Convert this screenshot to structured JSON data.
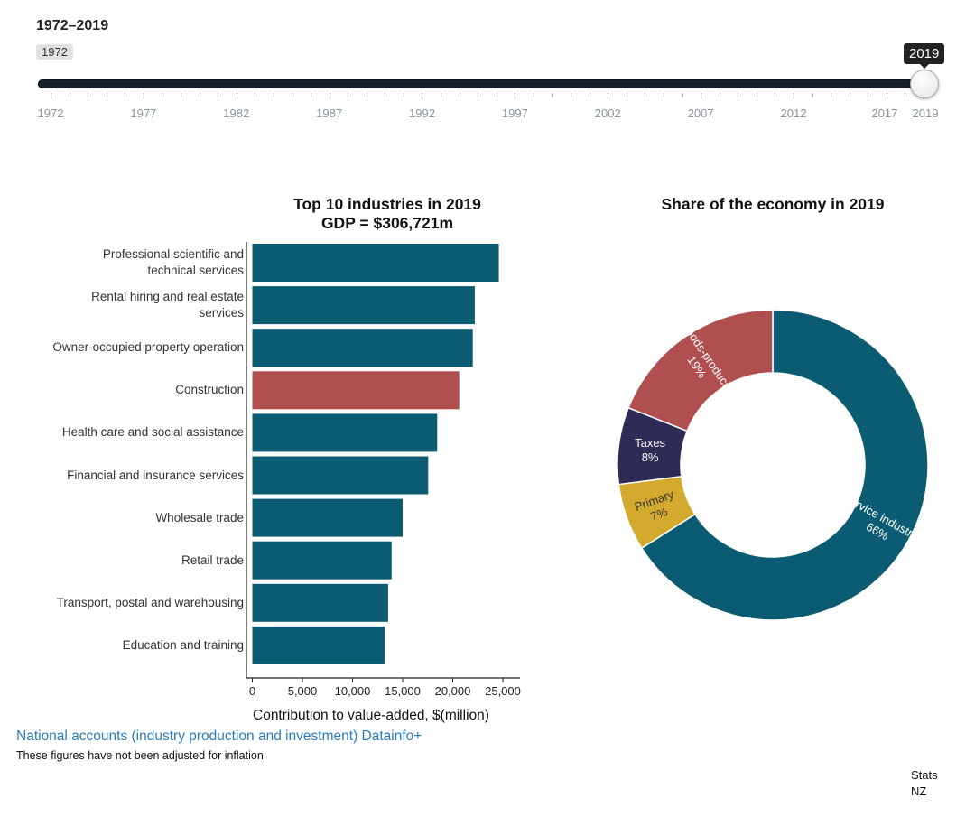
{
  "slider": {
    "range_title": "1972–2019",
    "start_value": "1972",
    "end_value": "2019",
    "min": 1972,
    "max": 2019,
    "selected_end": 2019,
    "tick_labels": [
      "1972",
      "1977",
      "1982",
      "1987",
      "1992",
      "1997",
      "2002",
      "2007",
      "2012",
      "2017",
      "2019"
    ]
  },
  "bar_chart": {
    "title_line1": "Top 10 industries in 2019",
    "title_line2": "GDP = $306,721m",
    "xlabel": "Contribution to value-added, $(million)"
  },
  "donut_chart": {
    "title": "Share of the economy in 2019"
  },
  "colors": {
    "service": "#0b5c72",
    "goods": "#b04f4f",
    "taxes": "#2e2c57",
    "primary": "#d4aa2e"
  },
  "chart_data": [
    {
      "type": "bar",
      "orientation": "horizontal",
      "title": "Top 10 industries in 2019 GDP = $306,721m",
      "xlabel": "Contribution to value-added, $(million)",
      "ylabel": "",
      "xlim": [
        0,
        27000
      ],
      "xticks": [
        0,
        5000,
        10000,
        15000,
        20000,
        25000
      ],
      "xtick_labels": [
        "0",
        "5,000",
        "10,000",
        "15,000",
        "20,000",
        "25,000"
      ],
      "categories": [
        [
          "Professional scientific and",
          "technical services"
        ],
        [
          "Rental hiring and real estate",
          "services"
        ],
        [
          "Owner-occupied property operation"
        ],
        [
          "Construction"
        ],
        [
          "Health care and social assistance"
        ],
        [
          "Financial and insurance services"
        ],
        [
          "Wholesale trade"
        ],
        [
          "Retail trade"
        ],
        [
          "Transport, postal and warehousing"
        ],
        [
          "Education and training"
        ]
      ],
      "values": [
        24600,
        22200,
        22000,
        20650,
        18450,
        17550,
        15000,
        13900,
        13550,
        13200
      ],
      "bar_colors": [
        "#0b5c72",
        "#0b5c72",
        "#0b5c72",
        "#b04f4f",
        "#0b5c72",
        "#0b5c72",
        "#0b5c72",
        "#0b5c72",
        "#0b5c72",
        "#0b5c72"
      ],
      "grid": false
    },
    {
      "type": "pie",
      "style": "donut",
      "title": "Share of the economy in 2019",
      "slices": [
        {
          "name": "Service industries",
          "label": "66%",
          "value": 66,
          "color": "#0b5c72"
        },
        {
          "name": "Primary",
          "label": "7%",
          "value": 7,
          "color": "#d4aa2e"
        },
        {
          "name": "Taxes",
          "label": "8%",
          "value": 8,
          "color": "#2e2c57"
        },
        {
          "name": "Goods-producing",
          "label": "19%",
          "value": 19,
          "color": "#b04f4f"
        }
      ]
    }
  ],
  "footer": {
    "source_link": "National accounts (industry production and investment) Datainfo+",
    "note": "These figures have not been adjusted for inflation",
    "credit": "Stats NZ"
  }
}
